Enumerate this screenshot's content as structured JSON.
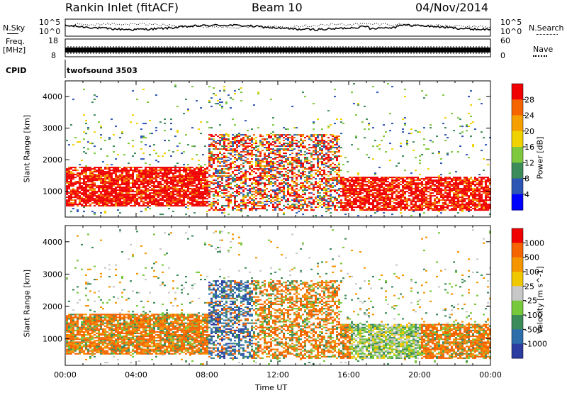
{
  "header": {
    "station": "Rankin Inlet (fitACF)",
    "beam": "Beam 10",
    "date": "04/Nov/2014"
  },
  "noise_panel": {
    "left_label": "N.Sky",
    "left_ticks": [
      "10^5",
      "10^0"
    ],
    "right_label": "N.Search",
    "right_ticks": [
      "10^5",
      "10^0"
    ]
  },
  "freq_panel": {
    "left_label_1": "Freq.",
    "left_label_2": "[MHz]",
    "left_ticks": [
      "18",
      "8"
    ],
    "right_label": "Nave",
    "right_ticks": [
      "60",
      "0"
    ]
  },
  "cpid_panel": {
    "label": "CPID",
    "value": "twofsound 3503"
  },
  "chart_data": [
    {
      "type": "heatmap",
      "title": "",
      "quantity": "Power",
      "ylabel": "Slant Range [km]",
      "xlabel": "Time UT",
      "ylim": [
        180,
        4500
      ],
      "xlim_hours": [
        0,
        24
      ],
      "y_ticks": [
        "1000",
        "2000",
        "3000",
        "4000"
      ],
      "x_ticks": [
        "00:00",
        "04:00",
        "08:00",
        "12:00",
        "16:00",
        "20:00",
        "00:00"
      ],
      "colorbar": {
        "label": "Power [dB]",
        "ticks": [
          "4",
          "8",
          "12",
          "16",
          "20",
          "24",
          "28"
        ],
        "colors": [
          "#0000ff",
          "#2d55b4",
          "#3c8c5a",
          "#7dc83c",
          "#f0d200",
          "#f5a000",
          "#f56400",
          "#f00000"
        ]
      }
    },
    {
      "type": "heatmap",
      "title": "",
      "quantity": "Velocity",
      "ylabel": "Slant Range [km]",
      "xlabel": "Time UT",
      "ylim": [
        180,
        4500
      ],
      "xlim_hours": [
        0,
        24
      ],
      "y_ticks": [
        "1000",
        "2000",
        "3000",
        "4000"
      ],
      "x_ticks": [
        "00:00",
        "04:00",
        "08:00",
        "12:00",
        "16:00",
        "20:00",
        "00:00"
      ],
      "colorbar": {
        "label": "Velocity [m s^-1]",
        "ticks": [
          "1000",
          "500",
          "100",
          "25",
          "-25",
          "-100",
          "-500",
          "-1000"
        ],
        "colors": [
          "#2d3ca0",
          "#2d6eaa",
          "#3c8c5a",
          "#78c83c",
          "#c8c8c8",
          "#f0c800",
          "#f59600",
          "#f56400",
          "#f00000"
        ]
      }
    }
  ],
  "colors": {
    "background": "#ffffff",
    "axis": "#000000"
  }
}
